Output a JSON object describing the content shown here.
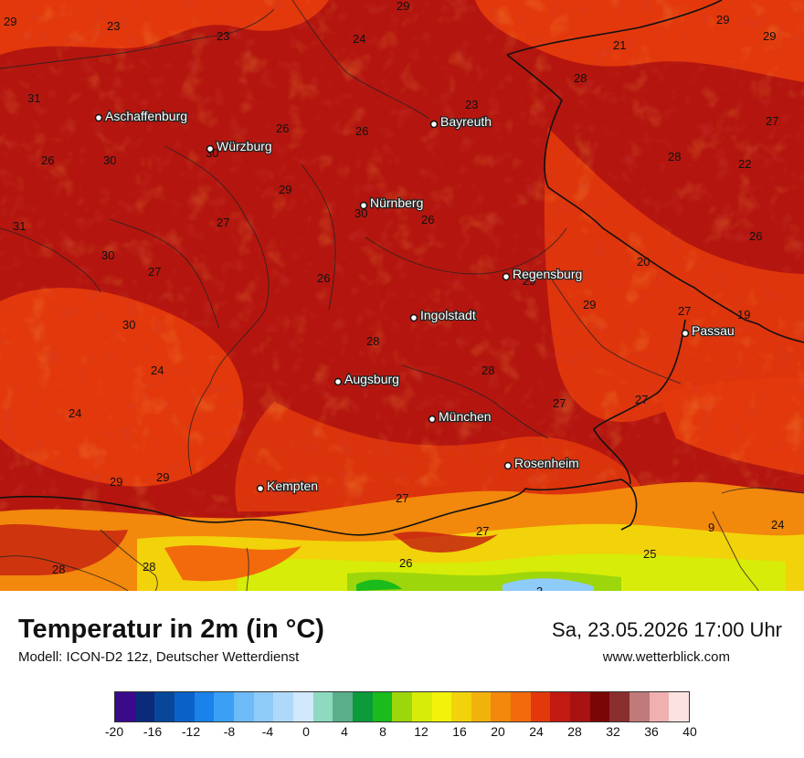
{
  "map": {
    "cities": [
      {
        "name": "Aschaffenburg"
      },
      {
        "name": "Würzburg"
      },
      {
        "name": "Bayreuth"
      },
      {
        "name": "Nürnberg"
      },
      {
        "name": "Regensburg"
      },
      {
        "name": "Ingolstadt"
      },
      {
        "name": "Passau"
      },
      {
        "name": "Augsburg"
      },
      {
        "name": "München"
      },
      {
        "name": "Rosenheim"
      },
      {
        "name": "Kempten"
      }
    ],
    "values": [
      "29",
      "23",
      "23",
      "24",
      "29",
      "29",
      "29",
      "21",
      "31",
      "29",
      "28",
      "23",
      "26",
      "26",
      "27",
      "26",
      "30",
      "28",
      "22",
      "29",
      "30",
      "26",
      "31",
      "27",
      "30",
      "26",
      "27",
      "20",
      "26",
      "29",
      "29",
      "30",
      "28",
      "28",
      "27",
      "24",
      "27",
      "24",
      "27",
      "29",
      "29",
      "27",
      "27",
      "9",
      "24",
      "28",
      "28",
      "25",
      "3",
      "19",
      "30",
      "26"
    ]
  },
  "footer": {
    "title": "Temperatur in 2m (in °C)",
    "subtitle": "Modell: ICON-D2 12z, Deutscher Wetterdienst",
    "datetime": "Sa, 23.05.2026 17:00 Uhr",
    "website": "www.wetterblick.com"
  },
  "legend": {
    "colors": [
      "#3a0a8a",
      "#0a2a7a",
      "#08469a",
      "#0a62c8",
      "#1a82ea",
      "#3aa0f5",
      "#6cbaf8",
      "#8ecbf9",
      "#afd9fb",
      "#d2e8fc",
      "#8ed9c0",
      "#5aae8a",
      "#0c9a3a",
      "#1abb1a",
      "#9dd60a",
      "#d7ec08",
      "#f2f20a",
      "#f2d20a",
      "#f2b20c",
      "#f2880c",
      "#f26a0c",
      "#e2380c",
      "#c21a10",
      "#a81212",
      "#7a0606",
      "#8a2e2e",
      "#c07a7a",
      "#f0b0b0",
      "#fde2e2"
    ],
    "ticks": [
      "-20",
      "-16",
      "-12",
      "-8",
      "-4",
      "0",
      "4",
      "8",
      "12",
      "16",
      "20",
      "24",
      "28",
      "32",
      "36",
      "40"
    ]
  }
}
